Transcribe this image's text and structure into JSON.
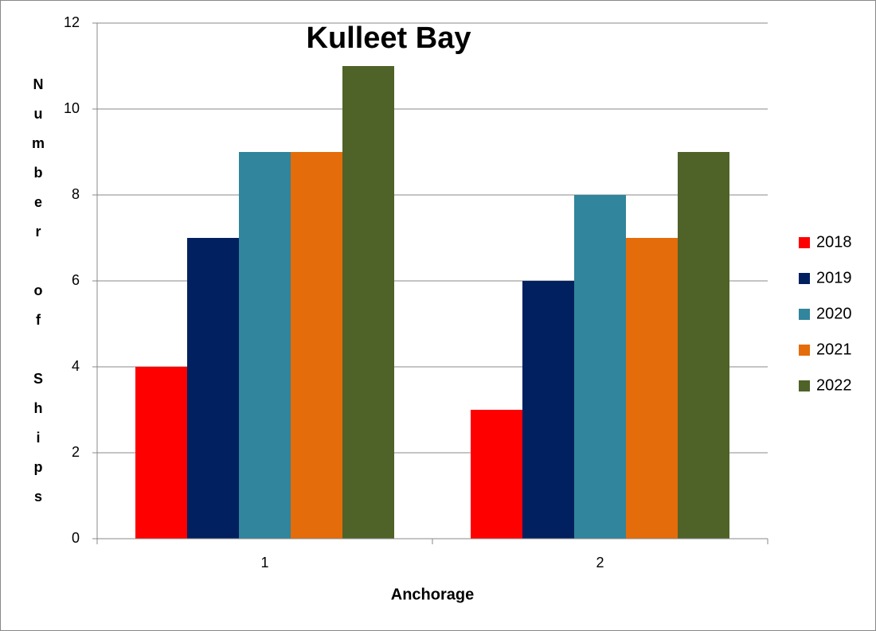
{
  "chart_data": {
    "type": "bar",
    "title": "Kulleet Bay",
    "x_label": "Anchorage",
    "y_label": "Number of Ships",
    "categories": [
      "1",
      "2"
    ],
    "series": [
      {
        "name": "2018",
        "color": "#ff0000",
        "values": [
          4,
          3
        ]
      },
      {
        "name": "2019",
        "color": "#002060",
        "values": [
          7,
          6
        ]
      },
      {
        "name": "2020",
        "color": "#31859c",
        "values": [
          9,
          8
        ]
      },
      {
        "name": "2021",
        "color": "#e46c0a",
        "values": [
          9,
          7
        ]
      },
      {
        "name": "2022",
        "color": "#4f6228",
        "values": [
          11,
          9
        ]
      }
    ],
    "ylim": [
      0,
      12
    ],
    "yticks": [
      0,
      2,
      4,
      6,
      8,
      10,
      12
    ],
    "grid": true,
    "legend": "right"
  }
}
